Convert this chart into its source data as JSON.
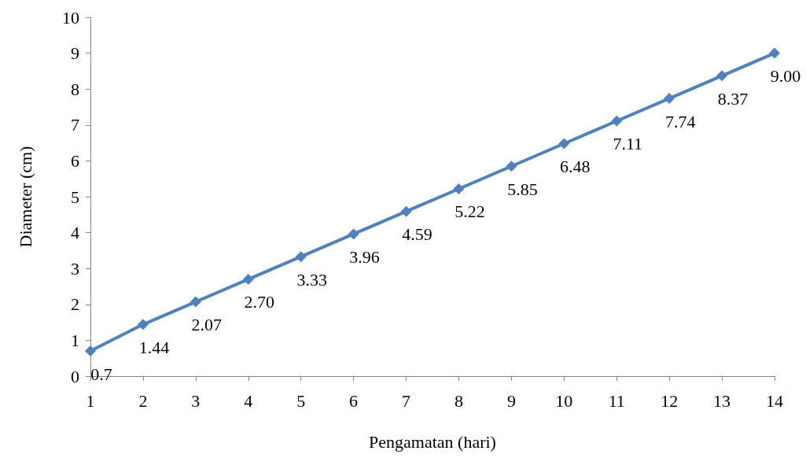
{
  "chart_data": {
    "type": "line",
    "xlabel": "Pengamatan (hari)",
    "ylabel": "Diameter (cm)",
    "categories": [
      "1",
      "2",
      "3",
      "4",
      "5",
      "6",
      "7",
      "8",
      "9",
      "10",
      "11",
      "12",
      "13",
      "14"
    ],
    "values": [
      0.7,
      1.44,
      2.07,
      2.7,
      3.33,
      3.96,
      4.59,
      5.22,
      5.85,
      6.48,
      7.11,
      7.74,
      8.37,
      9.0
    ],
    "value_labels": [
      "0.7",
      "1.44",
      "2.07",
      "2.70",
      "3.33",
      "3.96",
      "4.59",
      "5.22",
      "5.85",
      "6.48",
      "7.11",
      "7.74",
      "8.37",
      "9.00"
    ],
    "color": "#4f81bd",
    "marker": "diamond",
    "line_style": "solid",
    "ylim": [
      0,
      10
    ],
    "yticks": [
      0,
      1,
      2,
      3,
      4,
      5,
      6,
      7,
      8,
      9,
      10
    ]
  }
}
